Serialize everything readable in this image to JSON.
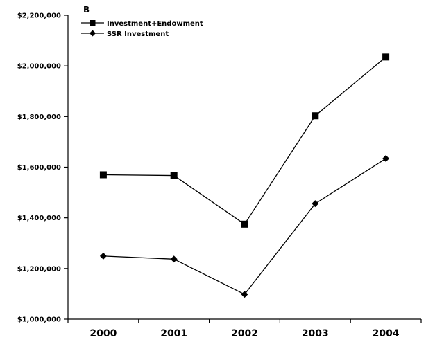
{
  "chart_data": {
    "type": "line",
    "panel_label": "B",
    "categories": [
      "2000",
      "2001",
      "2002",
      "2003",
      "2004"
    ],
    "series": [
      {
        "name": "Investment+Endowment",
        "marker": "square",
        "values": [
          1570000,
          1567000,
          1375000,
          1803000,
          2035000
        ]
      },
      {
        "name": "SSR Investment",
        "marker": "diamond",
        "values": [
          1249000,
          1237000,
          1098000,
          1456000,
          1634000
        ]
      }
    ],
    "y_tick_labels": [
      "$1,000,000",
      "$1,200,000",
      "$1,400,000",
      "$1,600,000",
      "$1,800,000",
      "$2,000,000",
      "$2,200,000"
    ],
    "ylim": [
      1000000,
      2200000
    ],
    "legend_position": "top-left",
    "grid": false,
    "colors": {
      "line": "#000000",
      "marker": "#000000"
    }
  }
}
